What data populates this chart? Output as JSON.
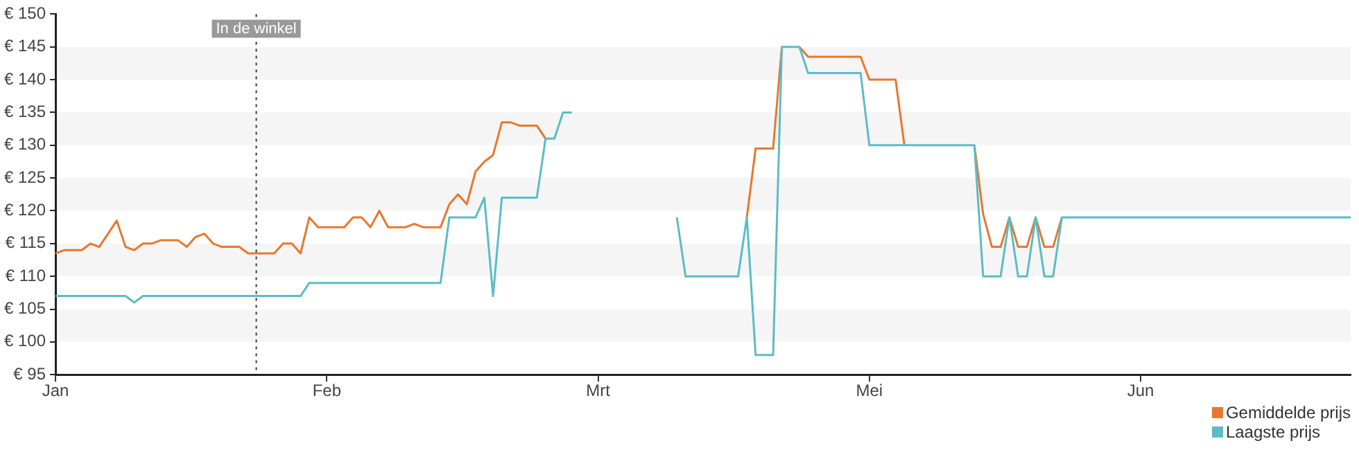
{
  "chart_data": {
    "type": "line",
    "categories": [
      "Jan",
      null,
      null,
      null,
      null,
      null,
      null,
      null,
      null,
      null,
      null,
      null,
      null,
      null,
      null,
      null,
      null,
      null,
      null,
      null,
      null,
      null,
      null,
      null,
      null,
      null,
      null,
      null,
      null,
      null,
      null,
      "Feb",
      null,
      null,
      null,
      null,
      null,
      null,
      null,
      null,
      null,
      null,
      null,
      null,
      null,
      null,
      null,
      null,
      null,
      null,
      null,
      null,
      null,
      null,
      null,
      null,
      null,
      null,
      null,
      null,
      null,
      null,
      "Mrt",
      null,
      null,
      null,
      null,
      null,
      null,
      null,
      null,
      null,
      null,
      null,
      null,
      null,
      null,
      null,
      null,
      null,
      null,
      null,
      null,
      null,
      null,
      null,
      null,
      null,
      null,
      null,
      null,
      null,
      null,
      "Mei",
      null,
      null,
      null,
      null,
      null,
      null,
      null,
      null,
      null,
      null,
      null,
      null,
      null,
      null,
      null,
      null,
      null,
      null,
      null,
      null,
      null,
      null,
      null,
      null,
      null,
      null,
      null,
      null,
      null,
      null,
      "Jun",
      null,
      null,
      null,
      null,
      null,
      null,
      null,
      null,
      null,
      null,
      null,
      null,
      null,
      null,
      null,
      null,
      null,
      null,
      null,
      null,
      null,
      null,
      null,
      null
    ],
    "ylim": [
      95,
      150
    ],
    "yticks": [
      {
        "value": 95,
        "label": "€ 95"
      },
      {
        "value": 100,
        "label": "€ 100"
      },
      {
        "value": 105,
        "label": "€ 105"
      },
      {
        "value": 110,
        "label": "€ 110"
      },
      {
        "value": 115,
        "label": "€ 115"
      },
      {
        "value": 120,
        "label": "€ 120"
      },
      {
        "value": 125,
        "label": "€ 125"
      },
      {
        "value": 130,
        "label": "€ 130"
      },
      {
        "value": 135,
        "label": "€ 135"
      },
      {
        "value": 140,
        "label": "€ 140"
      },
      {
        "value": 145,
        "label": "€ 145"
      },
      {
        "value": 150,
        "label": "€ 150"
      }
    ],
    "legend": "bottom right",
    "marker": "none",
    "line_style": "solid",
    "annotations": [
      "In de winkel"
    ],
    "series": [
      {
        "name": "Gemiddelde prijs",
        "color": "#e8772e",
        "values": [
          113.5,
          114,
          114,
          114,
          115,
          114.5,
          116.5,
          118.5,
          114.5,
          114,
          115,
          115,
          115.5,
          115.5,
          115.5,
          114.5,
          116,
          116.5,
          115,
          114.5,
          114.5,
          114.5,
          113.5,
          113.5,
          113.5,
          113.5,
          115,
          115,
          113.5,
          119,
          117.5,
          117.5,
          117.5,
          117.5,
          119,
          119,
          117.5,
          120,
          117.5,
          117.5,
          117.5,
          118,
          117.5,
          117.5,
          117.5,
          121,
          122.5,
          121,
          126,
          127.5,
          128.5,
          133.5,
          133.5,
          133,
          133,
          133,
          131,
          null,
          null,
          null,
          null,
          null,
          null,
          null,
          null,
          null,
          null,
          null,
          null,
          null,
          null,
          null,
          null,
          null,
          null,
          null,
          null,
          null,
          null,
          119,
          129.5,
          129.5,
          129.5,
          145,
          null,
          145,
          143.5,
          143.5,
          143.5,
          143.5,
          143.5,
          143.5,
          143.5,
          140,
          140,
          140,
          140,
          130,
          null,
          null,
          null,
          null,
          null,
          null,
          null,
          130,
          119.5,
          114.5,
          114.5,
          119,
          114.5,
          114.5,
          119,
          114.5,
          114.5,
          119,
          null,
          null,
          null,
          null,
          null,
          null,
          null,
          null,
          null,
          null,
          null,
          null,
          null,
          null,
          null,
          null,
          null,
          null,
          null,
          null,
          null,
          null,
          null,
          null,
          null,
          null,
          null,
          null,
          null,
          null,
          null,
          null,
          null
        ]
      },
      {
        "name": "Laagste prijs",
        "color": "#5bbcc6",
        "values": [
          107,
          107,
          107,
          107,
          107,
          107,
          107,
          107,
          107,
          106,
          107,
          107,
          107,
          107,
          107,
          107,
          107,
          107,
          107,
          107,
          107,
          107,
          107,
          107,
          107,
          107,
          107,
          107,
          107,
          109,
          109,
          109,
          109,
          109,
          109,
          109,
          109,
          109,
          109,
          109,
          109,
          109,
          109,
          109,
          109,
          119,
          119,
          119,
          119,
          122,
          107,
          122,
          122,
          122,
          122,
          122,
          131,
          131,
          135,
          135,
          null,
          null,
          null,
          null,
          null,
          null,
          null,
          null,
          null,
          null,
          null,
          119,
          110,
          110,
          110,
          110,
          110,
          110,
          110,
          119,
          98,
          98,
          98,
          145,
          145,
          145,
          141,
          141,
          141,
          141,
          141,
          141,
          141,
          130,
          130,
          130,
          130,
          130,
          130,
          130,
          130,
          130,
          130,
          130,
          130,
          130,
          110,
          110,
          110,
          119,
          110,
          110,
          119,
          110,
          110,
          119,
          119,
          119,
          119,
          119,
          119,
          119,
          119,
          119,
          119,
          119,
          119,
          119,
          119,
          119,
          119,
          119,
          119,
          119,
          119,
          119,
          119,
          119,
          119,
          119,
          119,
          119,
          119,
          119,
          119,
          119,
          119,
          119,
          119
        ]
      }
    ]
  }
}
